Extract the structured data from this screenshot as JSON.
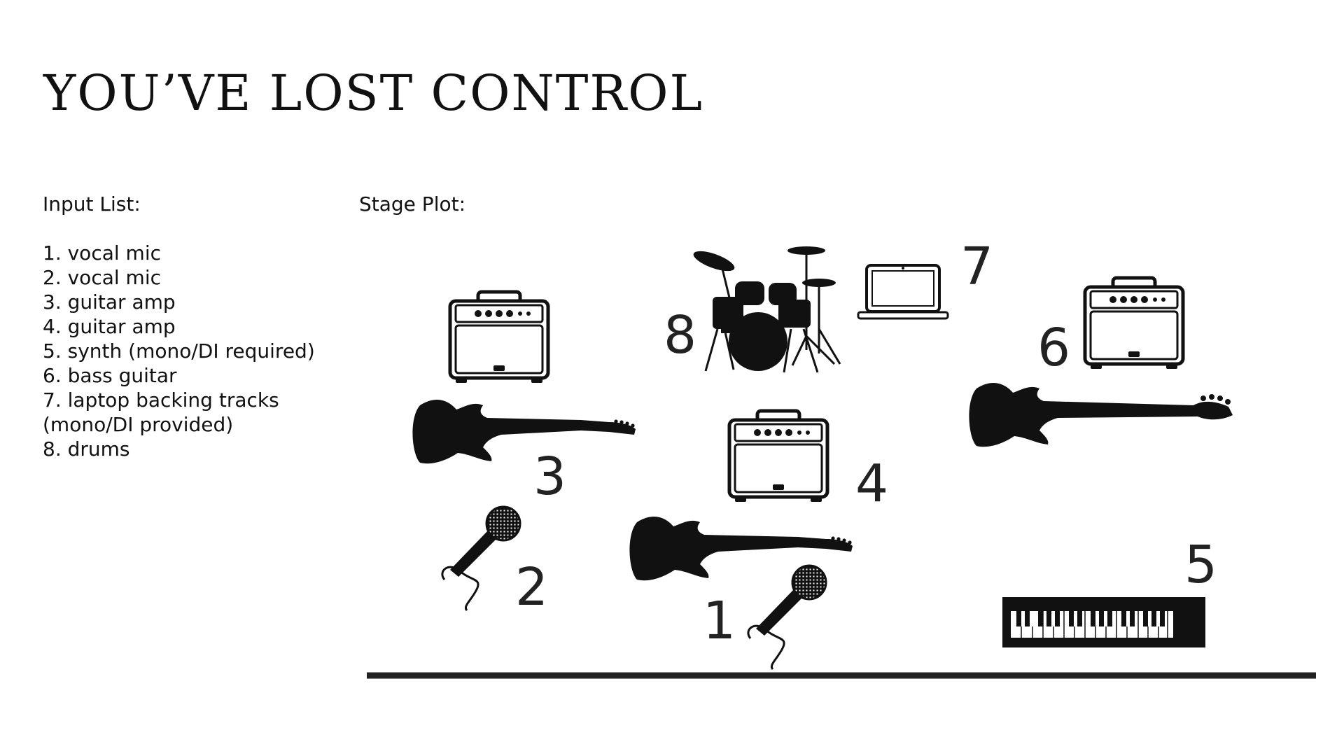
{
  "title": "YOU’VE LOST CONTROL",
  "input_list": {
    "label": "Input List:",
    "items": [
      "1. vocal mic",
      "2. vocal mic",
      "3. guitar amp",
      "4. guitar amp",
      "5. synth (mono/DI required)",
      "6. bass guitar",
      "7. laptop backing tracks",
      "(mono/DI provided)",
      "8. drums"
    ]
  },
  "stage_plot": {
    "label": "Stage Plot:",
    "numbers": {
      "n1": "1",
      "n2": "2",
      "n3": "3",
      "n4": "4",
      "n5": "5",
      "n6": "6",
      "n7": "7",
      "n8": "8"
    }
  },
  "icons": [
    "guitar-amp-icon",
    "electric-guitar-icon",
    "bass-guitar-icon",
    "microphone-icon",
    "drum-kit-icon",
    "laptop-icon",
    "keyboard-icon"
  ]
}
